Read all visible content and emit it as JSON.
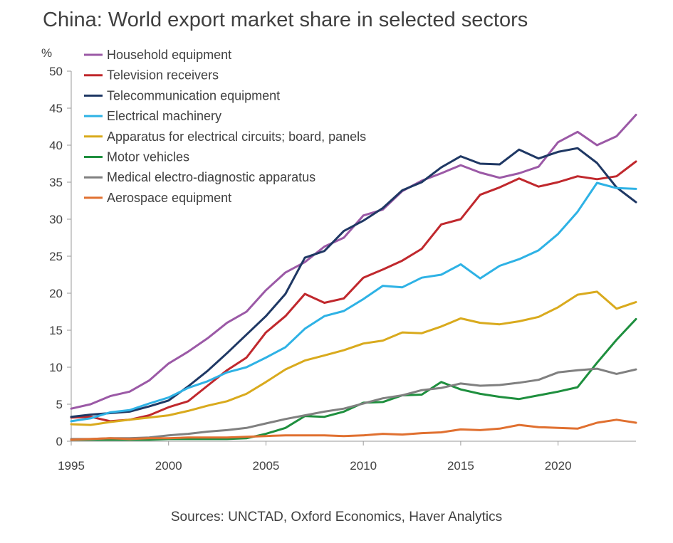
{
  "title": "China: World export market share in selected sectors",
  "source": "Sources: UNCTAD, Oxford Economics, Haver Analytics",
  "chart_data": {
    "type": "line",
    "title": "China: World export market share in selected sectors",
    "ylabel": "%",
    "xlabel": "",
    "xlim": [
      1995,
      2024
    ],
    "ylim": [
      0,
      50
    ],
    "x_ticks": [
      1995,
      2000,
      2005,
      2010,
      2015,
      2020
    ],
    "y_ticks": [
      0,
      5,
      10,
      15,
      20,
      25,
      30,
      35,
      40,
      45,
      50
    ],
    "grid": false,
    "legend_position": "top-left",
    "x": [
      1995,
      1996,
      1997,
      1998,
      1999,
      2000,
      2001,
      2002,
      2003,
      2004,
      2005,
      2006,
      2007,
      2008,
      2009,
      2010,
      2011,
      2012,
      2013,
      2014,
      2015,
      2016,
      2017,
      2018,
      2019,
      2020,
      2021,
      2022,
      2023,
      2024
    ],
    "series": [
      {
        "name": "Household equipment",
        "color": "#9b59a6",
        "values": [
          4.4,
          5.0,
          6.1,
          6.7,
          8.2,
          10.5,
          12.1,
          13.9,
          16.0,
          17.5,
          20.4,
          22.8,
          24.2,
          26.3,
          27.5,
          30.5,
          31.3,
          33.8,
          35.2,
          36.2,
          37.3,
          36.3,
          35.6,
          36.2,
          37.1,
          40.4,
          41.8,
          40.0,
          41.2,
          44.1
        ]
      },
      {
        "name": "Television receivers",
        "color": "#c0282d",
        "values": [
          3.2,
          3.3,
          2.7,
          2.9,
          3.5,
          4.6,
          5.4,
          7.5,
          9.6,
          11.3,
          14.7,
          16.9,
          19.9,
          18.7,
          19.3,
          22.1,
          23.2,
          24.4,
          26.0,
          29.3,
          30.0,
          33.3,
          34.3,
          35.5,
          34.4,
          35.0,
          35.8,
          35.4,
          35.8,
          37.8
        ]
      },
      {
        "name": "Telecommunication equipment",
        "color": "#1f3864",
        "values": [
          3.3,
          3.6,
          3.8,
          4.0,
          4.7,
          5.5,
          7.4,
          9.5,
          11.9,
          14.4,
          16.9,
          19.9,
          24.8,
          25.7,
          28.4,
          29.8,
          31.5,
          33.9,
          35.0,
          37.0,
          38.5,
          37.5,
          37.4,
          39.4,
          38.2,
          39.1,
          39.6,
          37.6,
          34.3,
          32.3
        ]
      },
      {
        "name": "Electrical machinery",
        "color": "#2eb2e5",
        "values": [
          2.7,
          3.1,
          3.9,
          4.2,
          5.1,
          5.9,
          7.2,
          8.1,
          9.3,
          10.0,
          11.3,
          12.7,
          15.2,
          16.9,
          17.6,
          19.2,
          21.0,
          20.8,
          22.1,
          22.5,
          23.9,
          22.0,
          23.7,
          24.6,
          25.8,
          28.0,
          31.0,
          34.9,
          34.2,
          34.1
        ]
      },
      {
        "name": "Apparatus for electrical circuits; board, panels",
        "color": "#d9aa1d",
        "values": [
          2.3,
          2.2,
          2.6,
          2.9,
          3.2,
          3.5,
          4.1,
          4.8,
          5.4,
          6.4,
          8.0,
          9.7,
          10.9,
          11.6,
          12.3,
          13.2,
          13.6,
          14.7,
          14.6,
          15.5,
          16.6,
          16.0,
          15.8,
          16.2,
          16.8,
          18.1,
          19.8,
          20.2,
          17.9,
          18.8
        ]
      },
      {
        "name": "Motor vehicles",
        "color": "#1e8f3e",
        "values": [
          0.2,
          0.2,
          0.2,
          0.2,
          0.2,
          0.3,
          0.3,
          0.3,
          0.3,
          0.4,
          1.0,
          1.8,
          3.4,
          3.3,
          4.0,
          5.2,
          5.3,
          6.2,
          6.3,
          8.0,
          7.0,
          6.4,
          6.0,
          5.7,
          6.2,
          6.7,
          7.3,
          10.6,
          13.7,
          16.5
        ]
      },
      {
        "name": "Medical electro-diagnostic apparatus",
        "color": "#808080",
        "values": [
          0.3,
          0.3,
          0.4,
          0.4,
          0.5,
          0.8,
          1.0,
          1.3,
          1.5,
          1.8,
          2.4,
          3.0,
          3.5,
          4.0,
          4.4,
          5.1,
          5.8,
          6.2,
          6.9,
          7.2,
          7.8,
          7.5,
          7.6,
          7.9,
          8.3,
          9.3,
          9.6,
          9.8,
          9.1,
          9.7
        ]
      },
      {
        "name": "Aerospace equipment",
        "color": "#e07030",
        "values": [
          0.2,
          0.3,
          0.4,
          0.3,
          0.4,
          0.4,
          0.5,
          0.5,
          0.5,
          0.6,
          0.7,
          0.8,
          0.8,
          0.8,
          0.7,
          0.8,
          1.0,
          0.9,
          1.1,
          1.2,
          1.6,
          1.5,
          1.7,
          2.2,
          1.9,
          1.8,
          1.7,
          2.5,
          2.9,
          2.5
        ]
      }
    ]
  }
}
